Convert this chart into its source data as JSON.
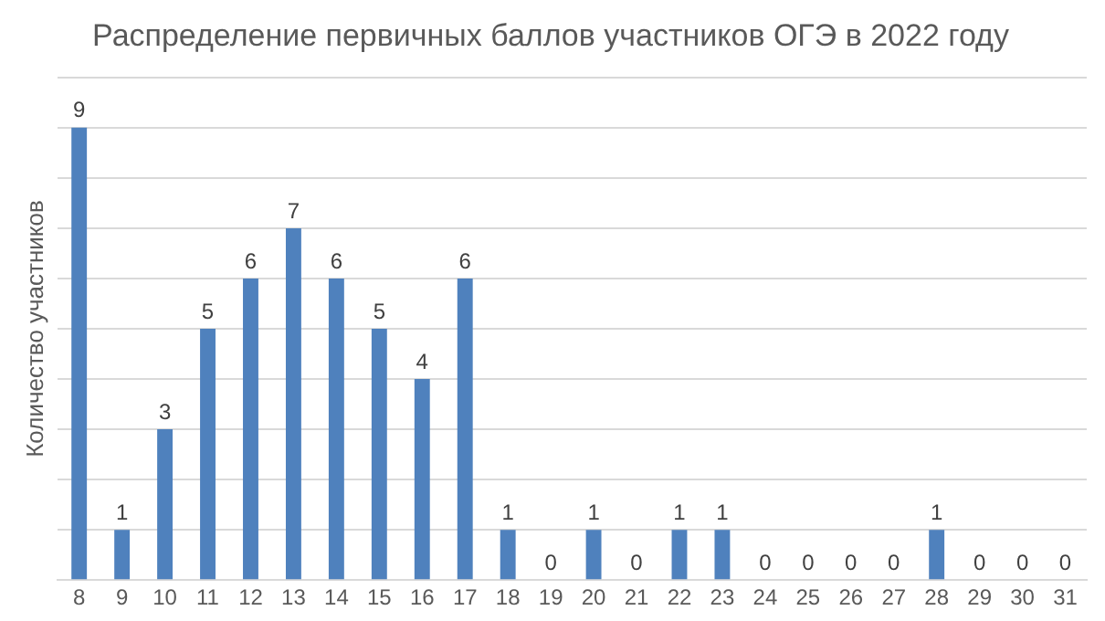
{
  "chart_data": {
    "type": "bar",
    "title": "Распределение первичных баллов участников ОГЭ в 2022 году",
    "ylabel": "Количество участников",
    "categories": [
      "8",
      "9",
      "10",
      "11",
      "12",
      "13",
      "14",
      "15",
      "16",
      "17",
      "18",
      "19",
      "20",
      "21",
      "22",
      "23",
      "24",
      "25",
      "26",
      "27",
      "28",
      "29",
      "30",
      "31"
    ],
    "values": [
      9,
      1,
      3,
      5,
      6,
      7,
      6,
      5,
      4,
      6,
      1,
      0,
      1,
      0,
      1,
      1,
      0,
      0,
      0,
      0,
      1,
      0,
      0,
      0
    ],
    "color": "#4f81bd",
    "ylim": [
      0,
      10
    ],
    "yticks": [
      {
        "value": 0,
        "label": null
      },
      {
        "value": 1,
        "label": null
      },
      {
        "value": 2,
        "label": null
      },
      {
        "value": 3,
        "label": null
      },
      {
        "value": 4,
        "label": null
      },
      {
        "value": 5,
        "label": null
      },
      {
        "value": 6,
        "label": null
      },
      {
        "value": 7,
        "label": null
      },
      {
        "value": 8,
        "label": null
      },
      {
        "value": 9,
        "label": null
      },
      {
        "value": 10,
        "label": null
      }
    ],
    "grid": "y",
    "tick_labels": "x",
    "data_labels": true
  }
}
